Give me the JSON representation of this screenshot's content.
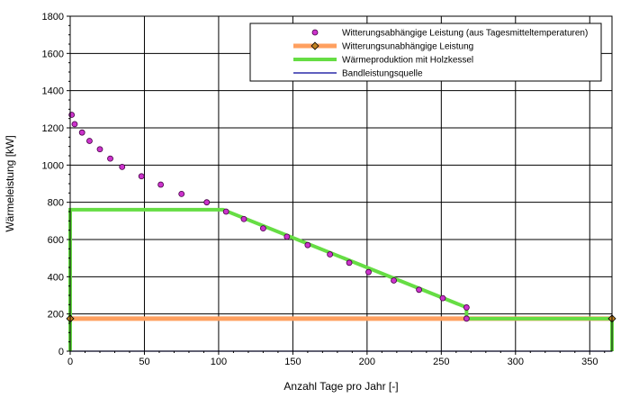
{
  "chart_data": {
    "type": "line",
    "xlabel": "Anzahl Tage pro Jahr [-]",
    "ylabel": "Wärmeleistung [kW]",
    "xlim": [
      0,
      365
    ],
    "ylim": [
      0,
      1800
    ],
    "xticks": [
      0,
      50,
      100,
      150,
      200,
      250,
      300,
      350
    ],
    "yticks": [
      0,
      200,
      400,
      600,
      800,
      1000,
      1200,
      1400,
      1600,
      1800
    ],
    "grid": true,
    "legend_position": "top-right",
    "series": [
      {
        "name": "Witterungsabhängige Leistung (aus Tagesmitteltemperaturen)",
        "style": "markers",
        "color": "#cc33cc",
        "x": [
          1,
          3,
          8,
          13,
          20,
          27,
          35,
          48,
          61,
          75,
          92,
          105,
          117,
          130,
          146,
          160,
          175,
          188,
          201,
          218,
          235,
          251,
          267,
          267
        ],
        "y": [
          1270,
          1220,
          1175,
          1130,
          1085,
          1035,
          990,
          940,
          895,
          845,
          800,
          750,
          710,
          660,
          615,
          570,
          520,
          475,
          425,
          380,
          330,
          285,
          235,
          175
        ]
      },
      {
        "name": "Witterungsunabhängige Leistung",
        "style": "line-diamond",
        "color": "#ffa060",
        "x": [
          0,
          365
        ],
        "y": [
          175,
          175
        ]
      },
      {
        "name": "Wärmeproduktion mit Holzkessel",
        "style": "line",
        "color": "#66dd44",
        "x": [
          0,
          0,
          103,
          267,
          267,
          365,
          365
        ],
        "y": [
          0,
          760,
          760,
          235,
          175,
          175,
          0
        ]
      },
      {
        "name": "Bandleistungsquelle",
        "style": "line",
        "color": "#000099",
        "x": [
          0,
          365
        ],
        "y": [
          0,
          0
        ]
      }
    ]
  }
}
